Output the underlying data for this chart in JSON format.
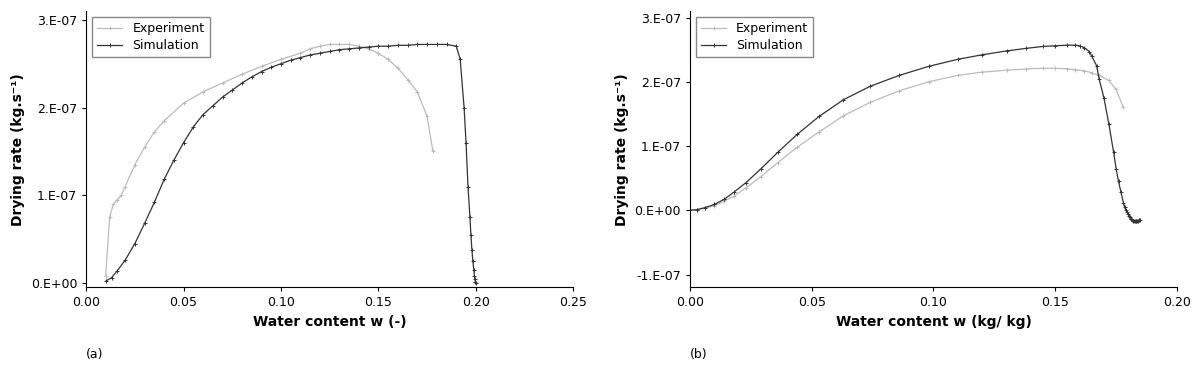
{
  "panel_a": {
    "title": "(a)",
    "xlabel": "Water content w (-)",
    "ylabel": "Drying rate (kg.s⁻¹)",
    "xlim": [
      0.0,
      0.25
    ],
    "ylim": [
      -5e-09,
      3.1e-07
    ],
    "yticks": [
      0.0,
      1e-07,
      2e-07,
      3e-07
    ],
    "ytick_labels": [
      "0.E+00",
      "1.E-07",
      "2.E-07",
      "3.E-07"
    ],
    "xticks": [
      0.0,
      0.05,
      0.1,
      0.15,
      0.2,
      0.25
    ],
    "xtick_labels": [
      "0.00",
      "0.05",
      "0.10",
      "0.15",
      "0.20",
      "0.25"
    ],
    "exp_color": "#bbbbbb",
    "sim_color": "#333333",
    "exp_x": [
      0.01,
      0.012,
      0.014,
      0.016,
      0.018,
      0.02,
      0.025,
      0.03,
      0.035,
      0.04,
      0.05,
      0.06,
      0.07,
      0.08,
      0.09,
      0.1,
      0.11,
      0.115,
      0.12,
      0.125,
      0.13,
      0.135,
      0.14,
      0.145,
      0.15,
      0.155,
      0.16,
      0.165,
      0.17,
      0.175,
      0.178
    ],
    "exp_y": [
      8e-09,
      7.5e-08,
      9e-08,
      9.5e-08,
      1e-07,
      1.1e-07,
      1.35e-07,
      1.55e-07,
      1.72e-07,
      1.85e-07,
      2.05e-07,
      2.18e-07,
      2.28e-07,
      2.38e-07,
      2.47e-07,
      2.55e-07,
      2.62e-07,
      2.67e-07,
      2.7e-07,
      2.72e-07,
      2.72e-07,
      2.72e-07,
      2.7e-07,
      2.67e-07,
      2.62e-07,
      2.55e-07,
      2.45e-07,
      2.32e-07,
      2.18e-07,
      1.9e-07,
      1.5e-07
    ],
    "sim_x": [
      0.01,
      0.013,
      0.016,
      0.02,
      0.025,
      0.03,
      0.035,
      0.04,
      0.045,
      0.05,
      0.055,
      0.06,
      0.065,
      0.07,
      0.075,
      0.08,
      0.085,
      0.09,
      0.095,
      0.1,
      0.105,
      0.11,
      0.115,
      0.12,
      0.125,
      0.13,
      0.135,
      0.14,
      0.145,
      0.15,
      0.155,
      0.16,
      0.165,
      0.17,
      0.175,
      0.18,
      0.185,
      0.19,
      0.192,
      0.194,
      0.195,
      0.196,
      0.197,
      0.1975,
      0.198,
      0.1985,
      0.199,
      0.1993,
      0.1996,
      0.1998,
      0.2
    ],
    "sim_y": [
      2e-09,
      6e-09,
      1.4e-08,
      2.6e-08,
      4.5e-08,
      6.8e-08,
      9.2e-08,
      1.18e-07,
      1.4e-07,
      1.6e-07,
      1.78e-07,
      1.92e-07,
      2.02e-07,
      2.12e-07,
      2.2e-07,
      2.28e-07,
      2.35e-07,
      2.41e-07,
      2.46e-07,
      2.5e-07,
      2.54e-07,
      2.57e-07,
      2.6e-07,
      2.62e-07,
      2.64e-07,
      2.66e-07,
      2.67e-07,
      2.68e-07,
      2.69e-07,
      2.7e-07,
      2.7e-07,
      2.71e-07,
      2.71e-07,
      2.72e-07,
      2.72e-07,
      2.72e-07,
      2.72e-07,
      2.7e-07,
      2.55e-07,
      2e-07,
      1.6e-07,
      1.1e-07,
      7.5e-08,
      5.5e-08,
      3.8e-08,
      2.5e-08,
      1.5e-08,
      8e-09,
      4e-09,
      1e-09,
      5e-10
    ]
  },
  "panel_b": {
    "title": "(b)",
    "xlabel": "Water content w (kg/ kg)",
    "ylabel": "Drying rate (kg.s⁻¹)",
    "xlim": [
      0.0,
      0.2
    ],
    "ylim": [
      -1.2e-07,
      3.1e-07
    ],
    "yticks": [
      -1e-07,
      0.0,
      1e-07,
      2e-07,
      3e-07
    ],
    "ytick_labels": [
      "-1.E-07",
      "0.E+00",
      "1.E-07",
      "2.E-07",
      "3.E-07"
    ],
    "xticks": [
      0.0,
      0.05,
      0.1,
      0.15,
      0.2
    ],
    "xtick_labels": [
      "0.00",
      "0.05",
      "0.10",
      "0.15",
      "0.20"
    ],
    "exp_color": "#bbbbbb",
    "sim_color": "#333333",
    "exp_x": [
      0.0,
      0.003,
      0.006,
      0.01,
      0.014,
      0.018,
      0.023,
      0.029,
      0.036,
      0.044,
      0.053,
      0.063,
      0.074,
      0.086,
      0.098,
      0.11,
      0.12,
      0.13,
      0.138,
      0.145,
      0.15,
      0.155,
      0.158,
      0.162,
      0.165,
      0.168,
      0.172,
      0.175,
      0.178
    ],
    "exp_y": [
      0.0,
      1e-09,
      3e-09,
      7e-09,
      1.4e-08,
      2.2e-08,
      3.5e-08,
      5.2e-08,
      7.4e-08,
      9.8e-08,
      1.22e-07,
      1.47e-07,
      1.68e-07,
      1.86e-07,
      2e-07,
      2.1e-07,
      2.15e-07,
      2.18e-07,
      2.2e-07,
      2.21e-07,
      2.21e-07,
      2.2e-07,
      2.19e-07,
      2.17e-07,
      2.14e-07,
      2.1e-07,
      2.02e-07,
      1.88e-07,
      1.6e-07
    ],
    "sim_x": [
      0.0,
      0.003,
      0.006,
      0.01,
      0.014,
      0.018,
      0.023,
      0.029,
      0.036,
      0.044,
      0.053,
      0.063,
      0.074,
      0.086,
      0.098,
      0.11,
      0.12,
      0.13,
      0.138,
      0.145,
      0.15,
      0.155,
      0.158,
      0.16,
      0.162,
      0.164,
      0.165,
      0.167,
      0.168,
      0.17,
      0.172,
      0.174,
      0.175,
      0.176,
      0.177,
      0.178,
      0.1785,
      0.179,
      0.1795,
      0.18,
      0.1803,
      0.1806,
      0.181,
      0.1813,
      0.1816,
      0.182,
      0.1823,
      0.1826,
      0.183,
      0.1833,
      0.1836,
      0.184,
      0.1843,
      0.1846,
      0.185
    ],
    "sim_y": [
      0.0,
      1e-09,
      4e-09,
      9e-09,
      1.7e-08,
      2.8e-08,
      4.3e-08,
      6.4e-08,
      9e-08,
      1.18e-07,
      1.46e-07,
      1.72e-07,
      1.93e-07,
      2.1e-07,
      2.24e-07,
      2.35e-07,
      2.42e-07,
      2.48e-07,
      2.52e-07,
      2.55e-07,
      2.56e-07,
      2.57e-07,
      2.57e-07,
      2.56e-07,
      2.53e-07,
      2.47e-07,
      2.4e-07,
      2.25e-07,
      2.05e-07,
      1.75e-07,
      1.35e-07,
      9e-08,
      6.5e-08,
      4.5e-08,
      2.8e-08,
      1.2e-08,
      5e-09,
      0.0,
      -3e-09,
      -6e-09,
      -9e-09,
      -1.1e-08,
      -1.3e-08,
      -1.4e-08,
      -1.5e-08,
      -1.6e-08,
      -1.65e-08,
      -1.68e-08,
      -1.68e-08,
      -1.67e-08,
      -1.65e-08,
      -1.62e-08,
      -1.58e-08,
      -1.55e-08,
      -1.5e-08
    ]
  },
  "legend": {
    "exp_label": "Experiment",
    "sim_label": "Simulation"
  },
  "fig_bgcolor": "#ffffff",
  "fontsize": 9,
  "marker": "+"
}
